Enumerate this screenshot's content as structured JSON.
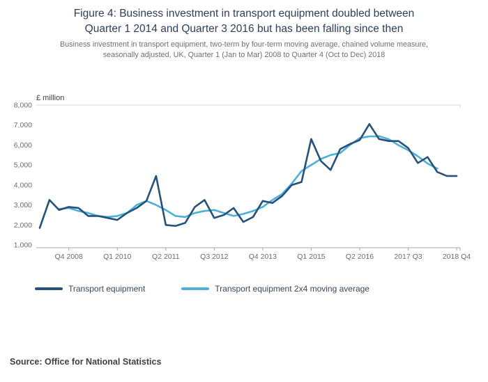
{
  "title": {
    "lines": [
      "Figure 4: Business investment in transport equipment doubled between",
      "Quarter 1 2014 and Quarter 3 2016 but has been falling since then"
    ]
  },
  "subtitle": {
    "lines": [
      "Business investment in transport equipment, two-term by four-term moving average, chained volume measure,",
      "seasonally adjusted, UK, Quarter 1 (Jan to Mar) 2008 to Quarter 4 (Oct to Dec) 2018"
    ]
  },
  "legend": {
    "items": [
      {
        "label": "Transport equipment",
        "color": "#24527c"
      },
      {
        "label": "Transport equipment 2x4 moving average",
        "color": "#4db0d8"
      }
    ]
  },
  "source": "Source: Office for National Statistics",
  "colors": {
    "dark_blue": "#24527c",
    "light_blue": "#4db0d8",
    "gridline": "#d9d9d9",
    "axis": "#a8a8a8",
    "tick_label": "#6d6d6d",
    "unit_label": "#414042"
  },
  "chart_data": {
    "type": "line",
    "unit_label": "£ million",
    "ylim": [
      1000,
      8000
    ],
    "yticks": [
      1000,
      2000,
      3000,
      4000,
      5000,
      6000,
      7000,
      8000
    ],
    "grid": "top-line-only",
    "legend_position": "bottom",
    "x_quarters": [
      "2008 Q1",
      "2008 Q2",
      "2008 Q3",
      "2008 Q4",
      "2009 Q1",
      "2009 Q2",
      "2009 Q3",
      "2009 Q4",
      "2010 Q1",
      "2010 Q2",
      "2010 Q3",
      "2010 Q4",
      "2011 Q1",
      "2011 Q2",
      "2011 Q3",
      "2011 Q4",
      "2012 Q1",
      "2012 Q2",
      "2012 Q3",
      "2012 Q4",
      "2013 Q1",
      "2013 Q2",
      "2013 Q3",
      "2013 Q4",
      "2014 Q1",
      "2014 Q2",
      "2014 Q3",
      "2014 Q4",
      "2015 Q1",
      "2015 Q2",
      "2015 Q3",
      "2015 Q4",
      "2016 Q1",
      "2016 Q2",
      "2016 Q3",
      "2016 Q4",
      "2017 Q1",
      "2017 Q2",
      "2017 Q3",
      "2017 Q4",
      "2018 Q1",
      "2018 Q2",
      "2018 Q3",
      "2018 Q4"
    ],
    "xtick_labels": [
      "Q4 2008",
      "Q1 2010",
      "Q2 2011",
      "Q3 2012",
      "Q4 2013",
      "Q1 2015",
      "Q2 2016",
      "2017 Q3",
      "2018 Q4"
    ],
    "xtick_indices": [
      3,
      8,
      13,
      18,
      23,
      28,
      33,
      38,
      43
    ],
    "series": [
      {
        "name": "Transport equipment",
        "color": "#24527c",
        "values": [
          1850,
          3250,
          2750,
          2900,
          2850,
          2450,
          2450,
          2350,
          2250,
          2600,
          2850,
          3200,
          4450,
          2000,
          1950,
          2100,
          2900,
          3250,
          2350,
          2500,
          2850,
          2150,
          2400,
          3200,
          3100,
          3450,
          4000,
          4150,
          6300,
          5200,
          4750,
          5800,
          6050,
          6250,
          7050,
          6300,
          6200,
          6200,
          5850,
          5100,
          5400,
          4650,
          4450,
          4450
        ]
      },
      {
        "name": "Transport equipment 2x4 moving average",
        "color": "#4db0d8",
        "values": [
          null,
          null,
          2800,
          2850,
          2700,
          2600,
          2450,
          2400,
          2450,
          2600,
          3000,
          3200,
          3000,
          2750,
          2450,
          2400,
          2600,
          2700,
          2750,
          2600,
          2450,
          2550,
          2700,
          2900,
          3250,
          3550,
          4075,
          4700,
          5000,
          5300,
          5500,
          5600,
          6000,
          6350,
          6430,
          6440,
          6290,
          5990,
          5740,
          5440,
          5075,
          4820,
          null,
          null
        ]
      }
    ]
  }
}
